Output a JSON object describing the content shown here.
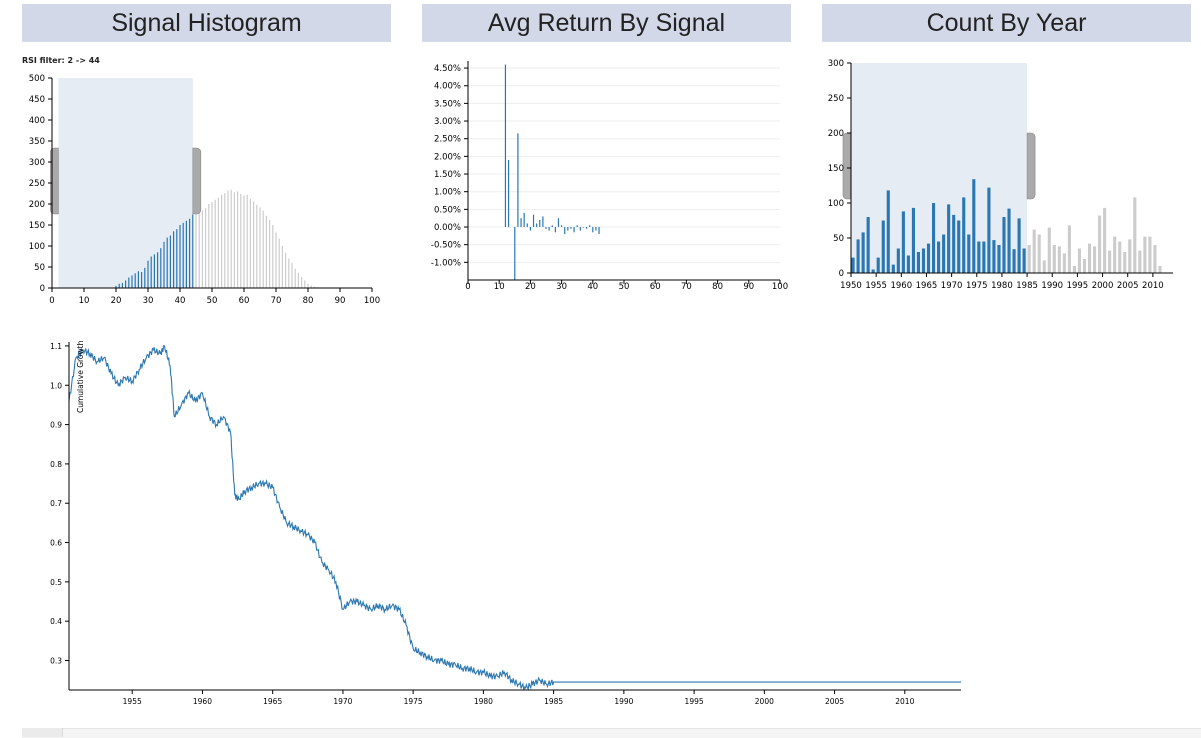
{
  "panels": {
    "histogram_title": "Signal Histogram",
    "avg_return_title": "Avg Return By Signal",
    "count_year_title": "Count By Year",
    "filter_label": "RSI filter: 2 -> 44"
  },
  "colors": {
    "selected": "#2b77b2",
    "unselected": "#cccccc",
    "brush": "#e6ecf3",
    "handle": "#aaaaaa",
    "line": "#2b77b2",
    "header": "#d2d8e8"
  },
  "chart_data": [
    {
      "id": "signal-histogram",
      "type": "bar",
      "title": "Signal Histogram",
      "xlim": [
        0,
        100
      ],
      "ylim": [
        0,
        500
      ],
      "xticks": [
        "0",
        "10",
        "20",
        "30",
        "40",
        "50",
        "60",
        "70",
        "80",
        "90",
        "100"
      ],
      "yticks": [
        "0",
        "50",
        "100",
        "150",
        "200",
        "250",
        "300",
        "350",
        "400",
        "450",
        "500"
      ],
      "x": [
        20,
        21,
        22,
        23,
        24,
        25,
        26,
        27,
        28,
        29,
        30,
        31,
        32,
        33,
        34,
        35,
        36,
        37,
        38,
        39,
        40,
        41,
        42,
        43,
        44,
        45,
        46,
        47,
        48,
        49,
        50,
        51,
        52,
        53,
        54,
        55,
        56,
        57,
        58,
        59,
        60,
        61,
        62,
        63,
        64,
        65,
        66,
        67,
        68,
        69,
        70,
        71,
        72,
        73,
        74,
        75,
        76,
        77,
        78,
        79,
        80,
        81,
        82,
        83,
        84
      ],
      "values": [
        5,
        10,
        12,
        18,
        25,
        30,
        35,
        40,
        38,
        48,
        65,
        75,
        80,
        85,
        95,
        110,
        120,
        125,
        135,
        140,
        150,
        155,
        160,
        165,
        175,
        178,
        180,
        185,
        190,
        200,
        205,
        210,
        215,
        222,
        226,
        232,
        234,
        228,
        230,
        224,
        220,
        222,
        212,
        206,
        198,
        192,
        184,
        172,
        162,
        150,
        132,
        118,
        100,
        84,
        70,
        60,
        46,
        36,
        26,
        18,
        10,
        6,
        3,
        2,
        1
      ],
      "selection": [
        2,
        44
      ]
    },
    {
      "id": "avg-return-by-signal",
      "type": "bar",
      "title": "Avg Return By Signal",
      "xlim": [
        0,
        100
      ],
      "ylim": [
        -1.5,
        4.7
      ],
      "xticks": [
        "0",
        "10",
        "20",
        "30",
        "40",
        "50",
        "60",
        "70",
        "80",
        "90",
        "100"
      ],
      "yticks": [
        "4.50%",
        "4.00%",
        "3.50%",
        "3.00%",
        "2.50%",
        "2.00%",
        "1.50%",
        "1.00%",
        "0.50%",
        "0.00%",
        "-0.50%",
        "-1.00%"
      ],
      "x": [
        12,
        13,
        15,
        16,
        17,
        18,
        19,
        20,
        21,
        22,
        23,
        24,
        25,
        26,
        27,
        28,
        29,
        30,
        31,
        32,
        33,
        34,
        35,
        36,
        37,
        38,
        39,
        40,
        41,
        42
      ],
      "values": [
        4.6,
        1.9,
        -1.5,
        2.65,
        0.25,
        0.4,
        0.1,
        -0.1,
        0.35,
        0.1,
        0.2,
        0.3,
        -0.05,
        -0.1,
        0.05,
        -0.15,
        0.25,
        0.05,
        -0.2,
        -0.1,
        -0.05,
        -0.15,
        0.05,
        -0.1,
        0.0,
        -0.05,
        0.05,
        -0.15,
        -0.1,
        -0.2
      ]
    },
    {
      "id": "count-by-year",
      "type": "bar",
      "title": "Count By Year",
      "xlim": [
        1950,
        2014
      ],
      "ylim": [
        0,
        300
      ],
      "xticks": [
        "1950",
        "1955",
        "1960",
        "1965",
        "1970",
        "1975",
        "1980",
        "1985",
        "1990",
        "1995",
        "2000",
        "2005",
        "2010"
      ],
      "yticks": [
        "0",
        "50",
        "100",
        "150",
        "200",
        "250",
        "300"
      ],
      "x": [
        1950,
        1951,
        1952,
        1953,
        1954,
        1955,
        1956,
        1957,
        1958,
        1959,
        1960,
        1961,
        1962,
        1963,
        1964,
        1965,
        1966,
        1967,
        1968,
        1969,
        1970,
        1971,
        1972,
        1973,
        1974,
        1975,
        1976,
        1977,
        1978,
        1979,
        1980,
        1981,
        1982,
        1983,
        1984,
        1985,
        1986,
        1987,
        1988,
        1989,
        1990,
        1991,
        1992,
        1993,
        1994,
        1995,
        1996,
        1997,
        1998,
        1999,
        2000,
        2001,
        2002,
        2003,
        2004,
        2005,
        2006,
        2007,
        2008,
        2009,
        2010,
        2011,
        2012,
        2013
      ],
      "values": [
        22,
        48,
        58,
        80,
        5,
        22,
        75,
        118,
        12,
        35,
        88,
        25,
        93,
        30,
        35,
        42,
        100,
        45,
        55,
        98,
        83,
        75,
        108,
        55,
        134,
        45,
        45,
        122,
        47,
        40,
        80,
        92,
        34,
        78,
        35,
        40,
        62,
        55,
        18,
        65,
        40,
        38,
        28,
        68,
        10,
        35,
        20,
        42,
        38,
        82,
        93,
        32,
        52,
        45,
        30,
        48,
        108,
        32,
        52,
        52,
        40,
        10,
        0,
        0
      ],
      "selection": [
        1950,
        1985
      ]
    },
    {
      "id": "cumulative-growth",
      "type": "line",
      "title": "",
      "ylabel": "Cumulative Growth",
      "xlim": [
        1950.5,
        2014
      ],
      "ylim": [
        0.225,
        1.11
      ],
      "xticks": [
        "1955",
        "1960",
        "1965",
        "1970",
        "1975",
        "1980",
        "1985",
        "1990",
        "1995",
        "2000",
        "2005",
        "2010"
      ],
      "yticks": [
        "0.3",
        "0.4",
        "0.5",
        "0.6",
        "0.7",
        "0.8",
        "0.9",
        "1.0",
        "1.1"
      ],
      "x": [
        1950.5,
        1951.0,
        1951.5,
        1952.0,
        1952.5,
        1953.0,
        1953.5,
        1954.0,
        1954.5,
        1955.0,
        1955.5,
        1956.0,
        1956.5,
        1957.0,
        1957.3,
        1957.7,
        1958.0,
        1958.5,
        1959.0,
        1959.5,
        1960.0,
        1960.5,
        1961.0,
        1961.5,
        1962.0,
        1962.3,
        1962.6,
        1963.0,
        1963.5,
        1964.0,
        1964.5,
        1965.0,
        1965.5,
        1966.0,
        1966.5,
        1967.0,
        1967.5,
        1968.0,
        1968.5,
        1969.0,
        1969.5,
        1970.0,
        1970.5,
        1971.0,
        1971.5,
        1972.0,
        1972.5,
        1973.0,
        1973.5,
        1974.0,
        1974.5,
        1975.0,
        1975.5,
        1976.0,
        1976.5,
        1977.0,
        1977.5,
        1978.0,
        1978.5,
        1979.0,
        1979.5,
        1980.0,
        1980.5,
        1981.0,
        1981.5,
        1982.0,
        1982.5,
        1983.0,
        1983.5,
        1984.0,
        1984.5,
        1985.0,
        2014.0
      ],
      "values": [
        0.96,
        1.07,
        1.09,
        1.08,
        1.06,
        1.07,
        1.03,
        1.0,
        1.02,
        1.01,
        1.04,
        1.07,
        1.09,
        1.08,
        1.1,
        1.05,
        0.92,
        0.95,
        0.98,
        0.96,
        0.98,
        0.92,
        0.9,
        0.92,
        0.88,
        0.72,
        0.71,
        0.73,
        0.74,
        0.75,
        0.75,
        0.74,
        0.69,
        0.65,
        0.64,
        0.63,
        0.62,
        0.6,
        0.55,
        0.53,
        0.5,
        0.43,
        0.45,
        0.45,
        0.44,
        0.43,
        0.44,
        0.43,
        0.44,
        0.43,
        0.39,
        0.33,
        0.32,
        0.31,
        0.3,
        0.3,
        0.29,
        0.29,
        0.28,
        0.28,
        0.27,
        0.27,
        0.26,
        0.26,
        0.27,
        0.25,
        0.24,
        0.23,
        0.24,
        0.25,
        0.24,
        0.245,
        0.245
      ]
    }
  ]
}
